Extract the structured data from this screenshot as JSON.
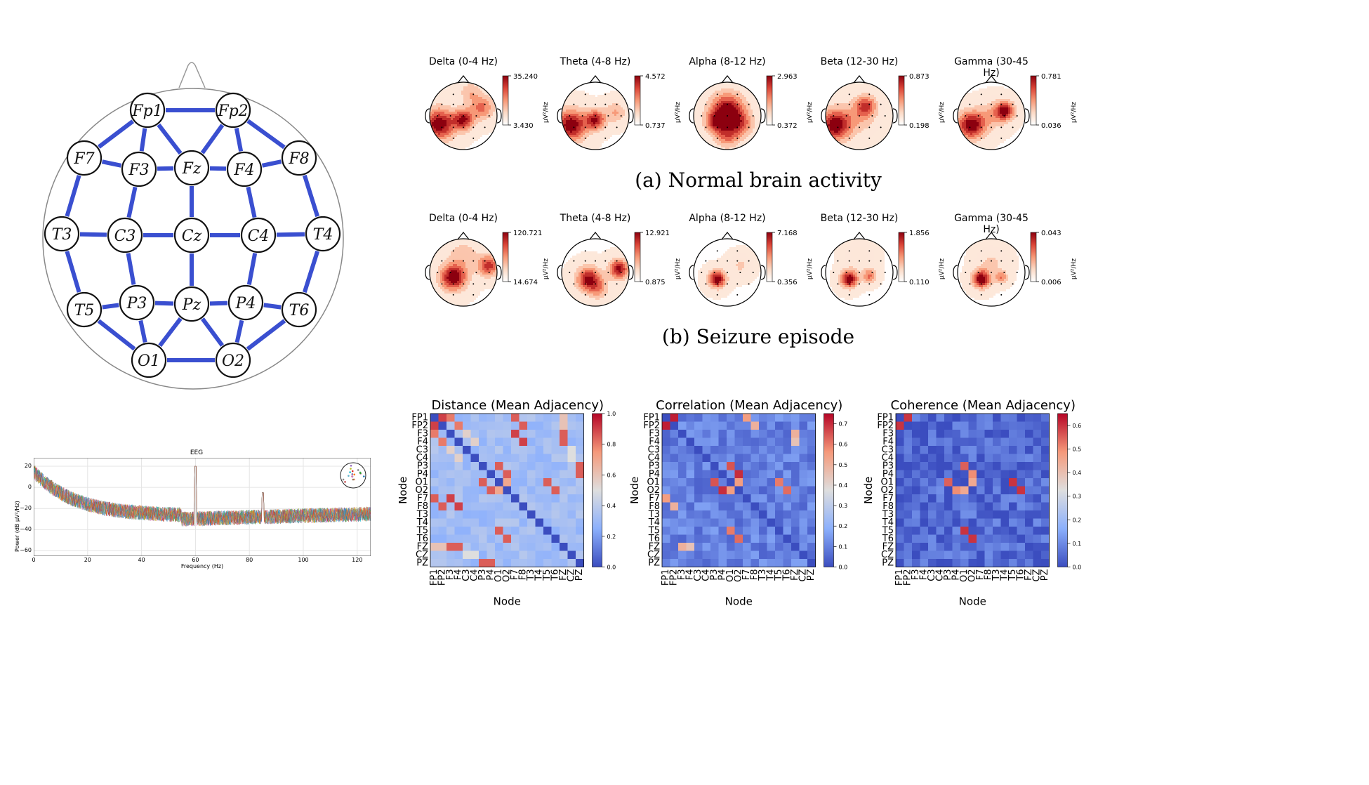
{
  "electrode_map": {
    "nodes": [
      {
        "id": "Fp1",
        "label": "Fp1"
      },
      {
        "id": "Fp2",
        "label": "Fp2"
      },
      {
        "id": "F7",
        "label": "F7"
      },
      {
        "id": "F3",
        "label": "F3"
      },
      {
        "id": "Fz",
        "label": "Fz"
      },
      {
        "id": "F4",
        "label": "F4"
      },
      {
        "id": "F8",
        "label": "F8"
      },
      {
        "id": "T3",
        "label": "T3"
      },
      {
        "id": "C3",
        "label": "C3"
      },
      {
        "id": "Cz",
        "label": "Cz"
      },
      {
        "id": "C4",
        "label": "C4"
      },
      {
        "id": "T4",
        "label": "T4"
      },
      {
        "id": "T5",
        "label": "T5"
      },
      {
        "id": "P3",
        "label": "P3"
      },
      {
        "id": "Pz",
        "label": "Pz"
      },
      {
        "id": "P4",
        "label": "P4"
      },
      {
        "id": "T6",
        "label": "T6"
      },
      {
        "id": "O1",
        "label": "O1"
      },
      {
        "id": "O2",
        "label": "O2"
      }
    ],
    "edges": [
      [
        "Fp1",
        "Fp2"
      ],
      [
        "Fp1",
        "F7"
      ],
      [
        "Fp1",
        "F3"
      ],
      [
        "Fp1",
        "Fz"
      ],
      [
        "Fp2",
        "Fz"
      ],
      [
        "Fp2",
        "F4"
      ],
      [
        "Fp2",
        "F8"
      ],
      [
        "F7",
        "F3"
      ],
      [
        "F3",
        "Fz"
      ],
      [
        "Fz",
        "F4"
      ],
      [
        "F4",
        "F8"
      ],
      [
        "F7",
        "T3"
      ],
      [
        "F3",
        "C3"
      ],
      [
        "Fz",
        "Cz"
      ],
      [
        "F4",
        "C4"
      ],
      [
        "F8",
        "T4"
      ],
      [
        "T3",
        "C3"
      ],
      [
        "C3",
        "Cz"
      ],
      [
        "Cz",
        "C4"
      ],
      [
        "C4",
        "T4"
      ],
      [
        "T3",
        "T5"
      ],
      [
        "C3",
        "P3"
      ],
      [
        "Cz",
        "Pz"
      ],
      [
        "C4",
        "P4"
      ],
      [
        "T4",
        "T6"
      ],
      [
        "T5",
        "P3"
      ],
      [
        "P3",
        "Pz"
      ],
      [
        "Pz",
        "P4"
      ],
      [
        "P4",
        "T6"
      ],
      [
        "T5",
        "O1"
      ],
      [
        "P3",
        "O1"
      ],
      [
        "Pz",
        "O1"
      ],
      [
        "Pz",
        "O2"
      ],
      [
        "P4",
        "O2"
      ],
      [
        "T6",
        "O2"
      ],
      [
        "O1",
        "O2"
      ]
    ]
  },
  "psd": {
    "title": "EEG",
    "xlabel": "Frequency (Hz)",
    "ylabel": "Power (dB µV²/Hz)",
    "xticks": [
      "0",
      "20",
      "40",
      "60",
      "80",
      "100",
      "120"
    ],
    "yticks": [
      "20",
      "0",
      "−20",
      "−40",
      "−60"
    ]
  },
  "topomaps": {
    "unit": "µV²/Hz",
    "normal": {
      "caption": "(a) Normal brain activity",
      "bands": [
        {
          "title": "Delta (0-4 Hz)",
          "max": "35.240",
          "min": "3.430"
        },
        {
          "title": "Theta (4-8 Hz)",
          "max": "4.572",
          "min": "0.737"
        },
        {
          "title": "Alpha (8-12 Hz)",
          "max": "2.963",
          "min": "0.372"
        },
        {
          "title": "Beta (12-30 Hz)",
          "max": "0.873",
          "min": "0.198"
        },
        {
          "title": "Gamma (30-45 Hz)",
          "max": "0.781",
          "min": "0.036"
        }
      ]
    },
    "seizure": {
      "caption": "(b) Seizure episode",
      "bands": [
        {
          "title": "Delta (0-4 Hz)",
          "max": "120.721",
          "min": "14.674"
        },
        {
          "title": "Theta (4-8 Hz)",
          "max": "12.921",
          "min": "0.875"
        },
        {
          "title": "Alpha (8-12 Hz)",
          "max": "7.168",
          "min": "0.356"
        },
        {
          "title": "Beta (12-30 Hz)",
          "max": "1.856",
          "min": "0.110"
        },
        {
          "title": "Gamma (30-45 Hz)",
          "max": "0.043",
          "min": "0.006"
        }
      ]
    }
  },
  "chart_data": [
    {
      "type": "line",
      "title": "EEG",
      "xlabel": "Frequency (Hz)",
      "ylabel": "Power (dB µV²/Hz)",
      "xlim": [
        0,
        125
      ],
      "ylim": [
        -65,
        28
      ],
      "peaks_hz": [
        60,
        85
      ],
      "grid": true
    },
    {
      "type": "heatmap",
      "title": "Distance (Mean Adjacency)",
      "xlabel": "Node",
      "ylabel": "Node",
      "colorbar_ticks": [
        "0.0",
        "0.2",
        "0.4",
        "0.6",
        "0.8",
        "1.0"
      ],
      "vmax": 1.0,
      "pairs": [
        [
          "FP1",
          "FP2",
          0.9
        ],
        [
          "FP1",
          "F3",
          0.8
        ],
        [
          "FP1",
          "F7",
          0.85
        ],
        [
          "FP2",
          "F4",
          0.8
        ],
        [
          "FP2",
          "F8",
          0.85
        ],
        [
          "F3",
          "F7",
          0.9
        ],
        [
          "F4",
          "F8",
          0.9
        ],
        [
          "F3",
          "FZ",
          0.85
        ],
        [
          "F4",
          "FZ",
          0.85
        ],
        [
          "FP1",
          "FZ",
          0.6
        ],
        [
          "FP2",
          "FZ",
          0.6
        ],
        [
          "P3",
          "O1",
          0.85
        ],
        [
          "P4",
          "O2",
          0.85
        ],
        [
          "P3",
          "PZ",
          0.85
        ],
        [
          "P4",
          "PZ",
          0.85
        ],
        [
          "T5",
          "O1",
          0.85
        ],
        [
          "T6",
          "O2",
          0.85
        ],
        [
          "O1",
          "O2",
          0.7
        ],
        [
          "F3",
          "C3",
          0.55
        ],
        [
          "F4",
          "C4",
          0.55
        ],
        [
          "C3",
          "CZ",
          0.5
        ],
        [
          "C4",
          "CZ",
          0.5
        ]
      ]
    },
    {
      "type": "heatmap",
      "title": "Correlation (Mean Adjacency)",
      "xlabel": "Node",
      "ylabel": "Node",
      "colorbar_ticks": [
        "0.0",
        "0.1",
        "0.2",
        "0.3",
        "0.4",
        "0.5",
        "0.6",
        "0.7"
      ],
      "vmax": 0.75,
      "pairs": [
        [
          "FP1",
          "FP2",
          0.72
        ],
        [
          "FP1",
          "F7",
          0.55
        ],
        [
          "FP2",
          "F8",
          0.5
        ],
        [
          "P3",
          "O1",
          0.65
        ],
        [
          "P4",
          "O2",
          0.7
        ],
        [
          "O1",
          "T5",
          0.6
        ],
        [
          "O2",
          "T6",
          0.62
        ],
        [
          "O1",
          "O2",
          0.55
        ],
        [
          "F3",
          "FZ",
          0.5
        ],
        [
          "F4",
          "FZ",
          0.45
        ]
      ]
    },
    {
      "type": "heatmap",
      "title": "Coherence (Mean Adjacency)",
      "xlabel": "Node",
      "ylabel": "Node",
      "colorbar_ticks": [
        "0.0",
        "0.1",
        "0.2",
        "0.3",
        "0.4",
        "0.5",
        "0.6"
      ],
      "vmax": 0.65,
      "pairs": [
        [
          "FP1",
          "FP2",
          0.6
        ],
        [
          "O1",
          "T5",
          0.6
        ],
        [
          "O2",
          "T6",
          0.6
        ],
        [
          "O1",
          "O2",
          0.45
        ],
        [
          "P3",
          "O1",
          0.55
        ],
        [
          "P4",
          "O2",
          0.5
        ]
      ]
    }
  ],
  "heatmaps": {
    "nodes": [
      "FP1",
      "FP2",
      "F3",
      "F4",
      "C3",
      "C4",
      "P3",
      "P4",
      "O1",
      "O2",
      "F7",
      "F8",
      "T3",
      "T4",
      "T5",
      "T6",
      "FZ",
      "CZ",
      "PZ"
    ],
    "axis_label": "Node",
    "distance_title": "Distance (Mean Adjacency)",
    "correlation_title": "Correlation (Mean Adjacency)",
    "coherence_title": "Coherence (Mean Adjacency)"
  }
}
